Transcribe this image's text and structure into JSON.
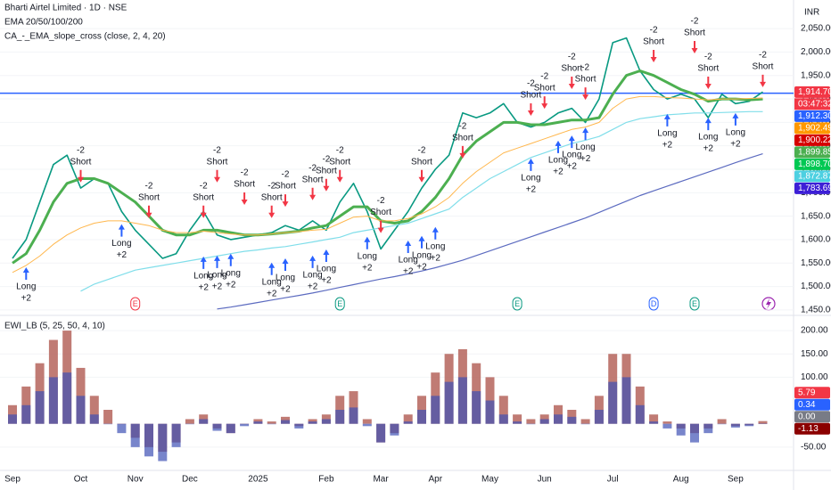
{
  "chart_data": [
    {
      "type": "line",
      "title": "Bharti Airtel Limited · 1D · NSE",
      "indicators": [
        "EMA 20/50/100/200",
        "CA_-_EMA_slope_cross (close, 2, 4, 20)"
      ],
      "axis_unit": "INR",
      "ylim": [
        1446,
        2111
      ],
      "yticks": [
        {
          "value": 1450,
          "label": "1,450.00"
        },
        {
          "value": 1500,
          "label": "1,500.00"
        },
        {
          "value": 1550,
          "label": "1,550.00"
        },
        {
          "value": 1600,
          "label": "1,600.00"
        },
        {
          "value": 1650,
          "label": "1,650.00"
        },
        {
          "value": 1700,
          "label": "1,700.00"
        },
        {
          "value": 1750,
          "label": "1,750.00"
        },
        {
          "value": 1800,
          "label": "1,800.00"
        },
        {
          "value": 1850,
          "label": "1,850.00"
        },
        {
          "value": 1900,
          "label": "1,900.00"
        },
        {
          "value": 1950,
          "label": "1,950.00"
        },
        {
          "value": 2000,
          "label": "2,000.00"
        },
        {
          "value": 2050,
          "label": "2,050.00"
        }
      ],
      "series": [
        {
          "color": "#089981",
          "width": 1.6,
          "values": [
            1560,
            1600,
            1680,
            1760,
            1780,
            1710,
            1730,
            1720,
            1660,
            1620,
            1590,
            1560,
            1570,
            1620,
            1660,
            1610,
            1600,
            1605,
            1610,
            1615,
            1630,
            1620,
            1640,
            1620,
            1680,
            1720,
            1660,
            1580,
            1620,
            1660,
            1710,
            1750,
            1780,
            1870,
            1860,
            1870,
            1890,
            1850,
            1840,
            1850,
            1870,
            1880,
            1850,
            1900,
            2020,
            2030,
            1960,
            1920,
            1900,
            1910,
            1900,
            1860,
            1910,
            1890,
            1895,
            1915
          ]
        },
        {
          "color": "#4caf50",
          "width": 3,
          "values": [
            1550,
            1570,
            1620,
            1680,
            1720,
            1730,
            1730,
            1720,
            1700,
            1680,
            1650,
            1620,
            1610,
            1610,
            1620,
            1620,
            1615,
            1610,
            1610,
            1612,
            1615,
            1618,
            1625,
            1630,
            1650,
            1670,
            1670,
            1640,
            1635,
            1640,
            1660,
            1690,
            1730,
            1780,
            1810,
            1830,
            1850,
            1850,
            1845,
            1845,
            1850,
            1855,
            1855,
            1860,
            1910,
            1950,
            1960,
            1950,
            1935,
            1920,
            1910,
            1895,
            1900,
            1900,
            1898,
            1900
          ]
        },
        {
          "color": "#ffb74d",
          "width": 1,
          "values": [
            1530,
            1545,
            1565,
            1590,
            1610,
            1625,
            1635,
            1640,
            1640,
            1635,
            1630,
            1620,
            1615,
            1615,
            1618,
            1615,
            1612,
            1610,
            1610,
            1612,
            1615,
            1617,
            1620,
            1622,
            1635,
            1648,
            1650,
            1640,
            1640,
            1645,
            1655,
            1670,
            1690,
            1720,
            1745,
            1765,
            1785,
            1795,
            1805,
            1815,
            1825,
            1835,
            1840,
            1850,
            1880,
            1900,
            1905,
            1905,
            1903,
            1902,
            1900,
            1898,
            1900,
            1900,
            1901,
            1902
          ]
        },
        {
          "color": "#80deea",
          "width": 1.2,
          "values": [
            null,
            null,
            null,
            null,
            null,
            1490,
            1505,
            1515,
            1525,
            1535,
            1540,
            1545,
            1550,
            1555,
            1560,
            1565,
            1570,
            1575,
            1578,
            1582,
            1585,
            1590,
            1595,
            1600,
            1605,
            1615,
            1620,
            1625,
            1630,
            1635,
            1645,
            1655,
            1665,
            1690,
            1710,
            1730,
            1745,
            1760,
            1775,
            1785,
            1795,
            1805,
            1812,
            1820,
            1835,
            1850,
            1858,
            1862,
            1866,
            1868,
            1870,
            1870,
            1871,
            1872,
            1873,
            1873
          ]
        },
        {
          "color": "#5c6bc0",
          "width": 1.2,
          "values": [
            null,
            null,
            null,
            null,
            null,
            null,
            null,
            null,
            null,
            null,
            null,
            null,
            null,
            null,
            null,
            1452,
            1456,
            1461,
            1466,
            1471,
            1476,
            1481,
            1486,
            1492,
            1498,
            1504,
            1510,
            1516,
            1521,
            1527,
            1533,
            1540,
            1548,
            1556,
            1566,
            1576,
            1586,
            1596,
            1606,
            1616,
            1626,
            1636,
            1646,
            1658,
            1670,
            1682,
            1694,
            1704,
            1714,
            1724,
            1734,
            1744,
            1754,
            1764,
            1774,
            1783
          ]
        }
      ],
      "hline": {
        "value": 1912.3,
        "color": "#2962ff"
      },
      "signals": [
        {
          "name": "Short",
          "score": "-2",
          "color": "#f23645",
          "values": [
            null,
            null,
            null,
            null,
            null,
            1722,
            null,
            null,
            null,
            null,
            1646,
            null,
            null,
            null,
            1646,
            1722,
            null,
            1674,
            null,
            1646,
            1670,
            null,
            1684,
            1703,
            1722,
            null,
            null,
            1614,
            null,
            null,
            1722,
            null,
            null,
            1773,
            null,
            null,
            null,
            null,
            1864,
            1879,
            null,
            1921,
            1898,
            null,
            null,
            null,
            null,
            1978,
            null,
            null,
            1997,
            1921,
            null,
            null,
            null,
            1925
          ]
        },
        {
          "name": "Long",
          "score": "+2",
          "color": "#2962ff",
          "values": [
            null,
            1541,
            null,
            null,
            null,
            null,
            null,
            null,
            1633,
            null,
            null,
            null,
            null,
            null,
            1564,
            1566,
            1570,
            null,
            null,
            1551,
            1560,
            null,
            1566,
            1579,
            null,
            null,
            1606,
            null,
            null,
            1598,
            1608,
            1627,
            null,
            null,
            null,
            null,
            null,
            null,
            1773,
            null,
            1811,
            1822,
            1839,
            null,
            null,
            null,
            null,
            null,
            1868,
            null,
            null,
            1860,
            null,
            1870,
            null,
            null
          ]
        }
      ],
      "events": [
        null,
        null,
        null,
        null,
        null,
        null,
        null,
        null,
        null,
        {
          "label": "E",
          "color": "#f23645"
        },
        null,
        null,
        null,
        null,
        null,
        null,
        null,
        null,
        null,
        null,
        null,
        null,
        null,
        null,
        {
          "label": "E",
          "color": "#089981"
        },
        null,
        null,
        null,
        null,
        null,
        null,
        null,
        null,
        null,
        null,
        null,
        null,
        {
          "label": "E",
          "color": "#089981"
        },
        null,
        null,
        null,
        null,
        null,
        null,
        null,
        null,
        null,
        {
          "label": "D",
          "color": "#2962ff"
        },
        null,
        null,
        {
          "label": "E",
          "color": "#089981"
        },
        null,
        null,
        null,
        null,
        null
      ],
      "price_labels": [
        {
          "value": 1914.7,
          "label": "1,914.70",
          "color": "#f23645"
        },
        {
          "value": 1912.3,
          "label": "1,912.30",
          "color": "#2962ff"
        },
        {
          "value": 1902.49,
          "label": "1,902.49",
          "color": "#ff9800"
        },
        {
          "value": 1900.22,
          "label": "1,900.22",
          "color": "#d50000"
        },
        {
          "value": 1899.85,
          "label": "1,899.85",
          "color": "#4caf50"
        },
        {
          "value": 1898.7,
          "label": "1,898.70",
          "color": "#00c853"
        },
        {
          "value": 1872.87,
          "label": "1,872.87",
          "color": "#4dd0e1"
        },
        {
          "value": 1783.69,
          "label": "1,783.69",
          "color": "#3d1fd6"
        }
      ],
      "countdown": "03:47:32"
    },
    {
      "type": "bar",
      "title": "EWI_LB (5, 25, 50, 4, 10)",
      "categories": [
        "Sep",
        null,
        null,
        null,
        null,
        "Oct",
        null,
        null,
        null,
        "Nov",
        null,
        null,
        null,
        "Dec",
        null,
        null,
        null,
        null,
        "2025",
        null,
        null,
        null,
        null,
        "Feb",
        null,
        null,
        null,
        "Mar",
        null,
        null,
        null,
        "Apr",
        null,
        null,
        null,
        "May",
        null,
        null,
        null,
        "Jun",
        null,
        null,
        null,
        null,
        "Jul",
        null,
        null,
        null,
        null,
        "Aug",
        null,
        null,
        null,
        "Sep",
        null,
        null
      ],
      "ylim": [
        -100,
        225
      ],
      "yticks": [
        {
          "value": 200,
          "label": "200.00"
        },
        {
          "value": 150,
          "label": "150.00"
        },
        {
          "value": 100,
          "label": "100.00"
        },
        {
          "value": -50,
          "label": "-50.00"
        }
      ],
      "series": [
        {
          "color": "#b5645c",
          "values": [
            40,
            80,
            130,
            180,
            200,
            120,
            60,
            30,
            0,
            -30,
            -50,
            -60,
            -40,
            10,
            20,
            -10,
            -20,
            0,
            10,
            5,
            15,
            -5,
            10,
            20,
            60,
            70,
            10,
            -40,
            -20,
            20,
            60,
            110,
            150,
            160,
            130,
            100,
            60,
            20,
            10,
            20,
            40,
            30,
            10,
            60,
            150,
            150,
            80,
            20,
            5,
            -10,
            -20,
            -10,
            10,
            -5,
            -3,
            5.79
          ]
        },
        {
          "color": "#3f51b5",
          "values": [
            20,
            40,
            70,
            100,
            110,
            60,
            20,
            0,
            -20,
            -50,
            -70,
            -80,
            -50,
            0,
            10,
            -15,
            -20,
            -5,
            5,
            0,
            8,
            -10,
            5,
            10,
            30,
            35,
            -5,
            -40,
            -25,
            5,
            30,
            60,
            90,
            100,
            70,
            50,
            20,
            5,
            0,
            10,
            20,
            15,
            0,
            30,
            90,
            100,
            40,
            5,
            -10,
            -25,
            -40,
            -20,
            0,
            -8,
            -5,
            0.34
          ]
        }
      ],
      "value_labels": [
        {
          "value": 5.79,
          "label": "5.79",
          "color": "#f23645"
        },
        {
          "value": 0.34,
          "label": "0.34",
          "color": "#2962ff"
        },
        {
          "value": 0,
          "label": "0.00",
          "color": "#787b86"
        },
        {
          "value": -1.13,
          "label": "-1.13",
          "color": "#8b0000"
        }
      ]
    }
  ]
}
